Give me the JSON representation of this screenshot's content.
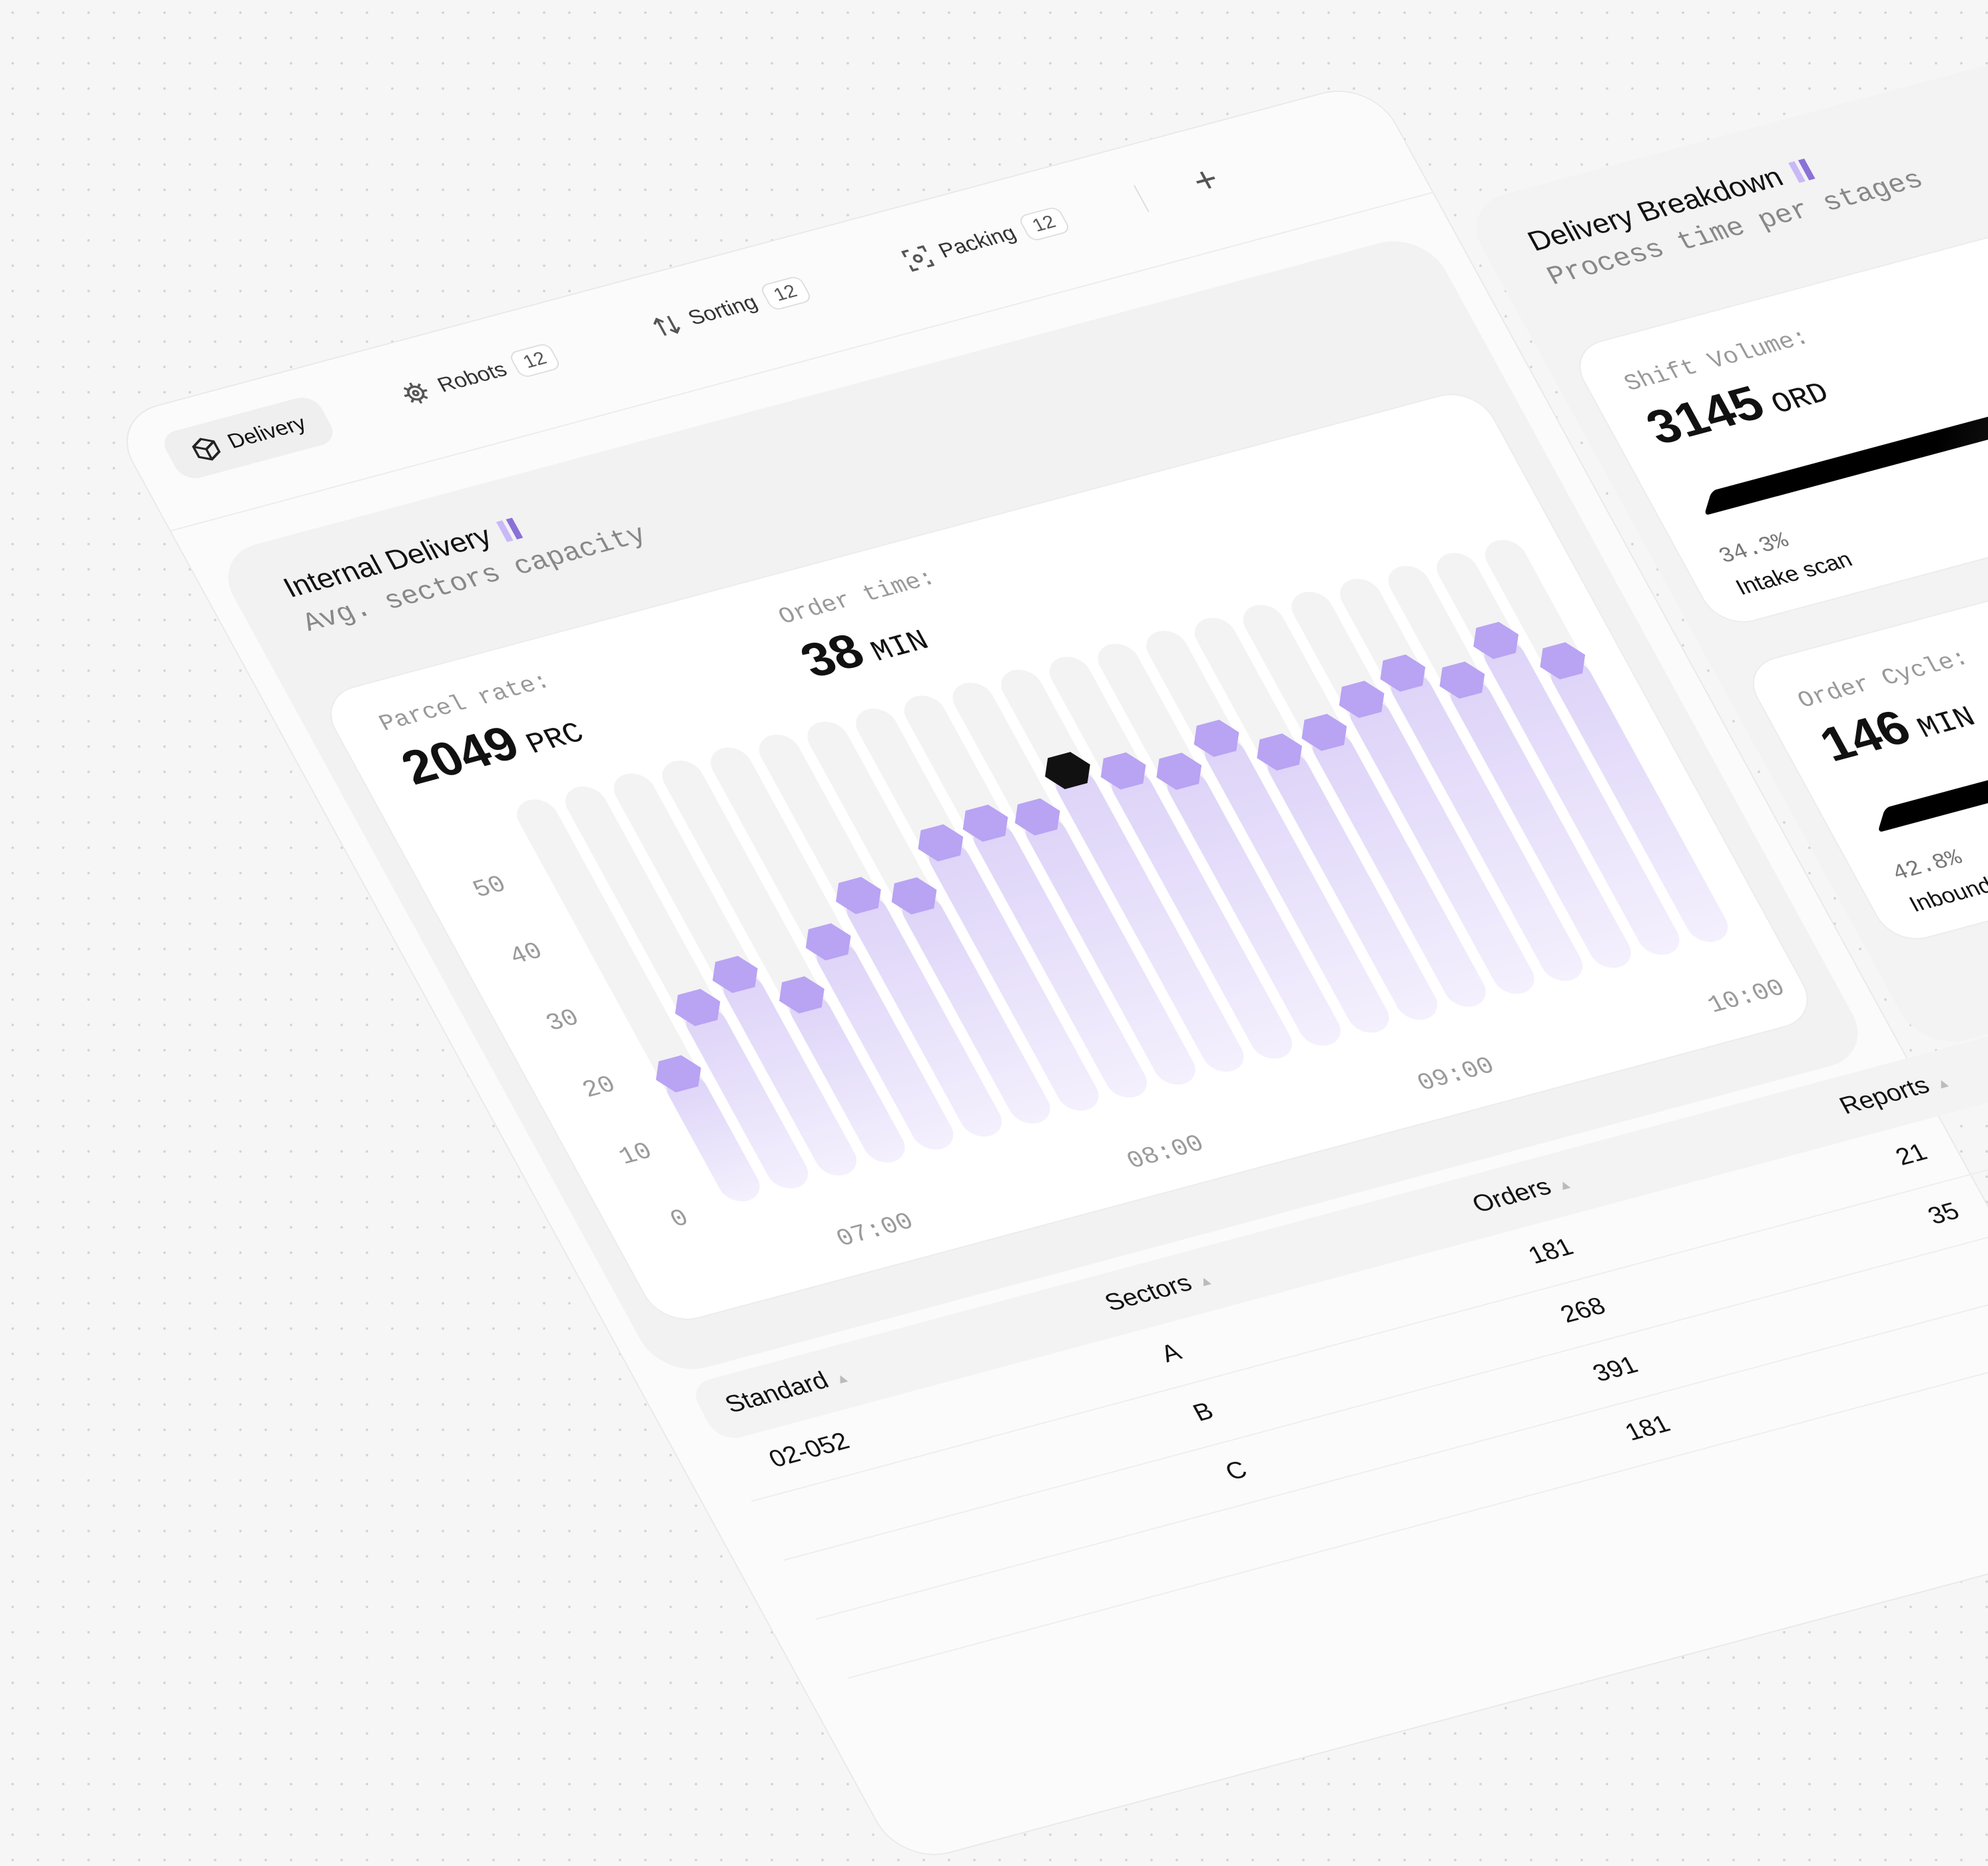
{
  "tabs": [
    {
      "label": "Delivery"
    },
    {
      "label": "Robots",
      "count": 12
    },
    {
      "label": "Sorting",
      "count": 12
    },
    {
      "label": "Packing",
      "count": 12
    }
  ],
  "add_tab": "+",
  "internal_delivery": {
    "title": "Internal Delivery",
    "subtitle": "Avg. sectors capacity",
    "stats": [
      {
        "label": "Parcel rate:",
        "value": 2049,
        "unit": "PRC"
      },
      {
        "label": "Order time:",
        "value": 38,
        "unit": "MIN"
      }
    ]
  },
  "chart_data": {
    "type": "bar",
    "categories": [
      null,
      null,
      "07:00",
      null,
      null,
      null,
      null,
      null,
      "08:00",
      null,
      null,
      null,
      null,
      null,
      "09:00",
      null,
      null,
      null,
      null,
      null,
      "10:00"
    ],
    "values": [
      19,
      27,
      30,
      25,
      31,
      36,
      34,
      40,
      41,
      40,
      45,
      43,
      41,
      44,
      40,
      41,
      44,
      46,
      43,
      47,
      42
    ],
    "ylim": [
      0,
      60
    ],
    "yticks": [
      0,
      10,
      20,
      30,
      40,
      50
    ],
    "color": "#b9a3f3",
    "highlight_index": 10,
    "highlight_color": "#111111"
  },
  "breakdown": {
    "title": "Delivery Breakdown",
    "subtitle": "Process time per stages",
    "cards": [
      {
        "label": "Shift Volume:",
        "value": 3145,
        "unit": "ORD",
        "share": "34.3%",
        "stage": "Intake scan"
      },
      {
        "label": "Order Cycle:",
        "value": 146,
        "unit": "MIN",
        "share": "42.8%",
        "stage": "Inbound"
      }
    ]
  },
  "table": {
    "headers": [
      "Standard",
      "Sectors",
      "Orders",
      "Reports"
    ],
    "rows": [
      [
        "02-052",
        "A",
        181,
        21
      ],
      [
        null,
        "B",
        268,
        35
      ],
      [
        null,
        "C",
        391,
        null
      ],
      [
        null,
        null,
        181,
        null
      ]
    ]
  }
}
